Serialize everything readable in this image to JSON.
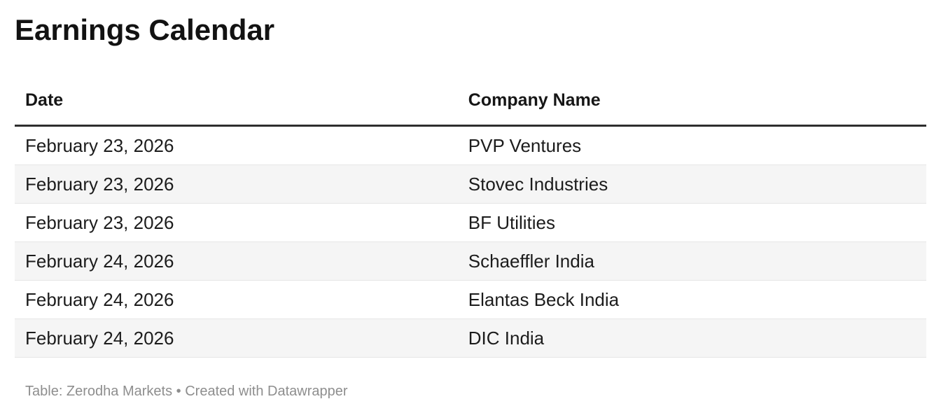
{
  "chart_data": {
    "type": "table",
    "title": "Earnings Calendar",
    "columns": [
      "Date",
      "Company Name"
    ],
    "rows": [
      {
        "date": "February 23, 2026",
        "company": "PVP Ventures"
      },
      {
        "date": "February 23, 2026",
        "company": "Stovec Industries"
      },
      {
        "date": "February 23, 2026",
        "company": "BF Utilities"
      },
      {
        "date": "February 24, 2026",
        "company": "Schaeffler India"
      },
      {
        "date": "February 24, 2026",
        "company": "Elantas Beck India"
      },
      {
        "date": "February 24, 2026",
        "company": "DIC India"
      }
    ],
    "layout": {
      "striped_rows": true,
      "stripe_pattern": "even rows shaded",
      "header_rule": "thick dark line below header",
      "grid": "horizontal separators only"
    }
  },
  "footer": {
    "text": "Table: Zerodha Markets • Created with Datawrapper"
  },
  "colors": {
    "background": "#ffffff",
    "title_text": "#121212",
    "body_text": "#1c1c1c",
    "header_rule": "#2e2e2e",
    "row_stripe": "#f5f5f5",
    "row_separator": "#e6e6e6",
    "footer_text": "#8e8e8e"
  }
}
